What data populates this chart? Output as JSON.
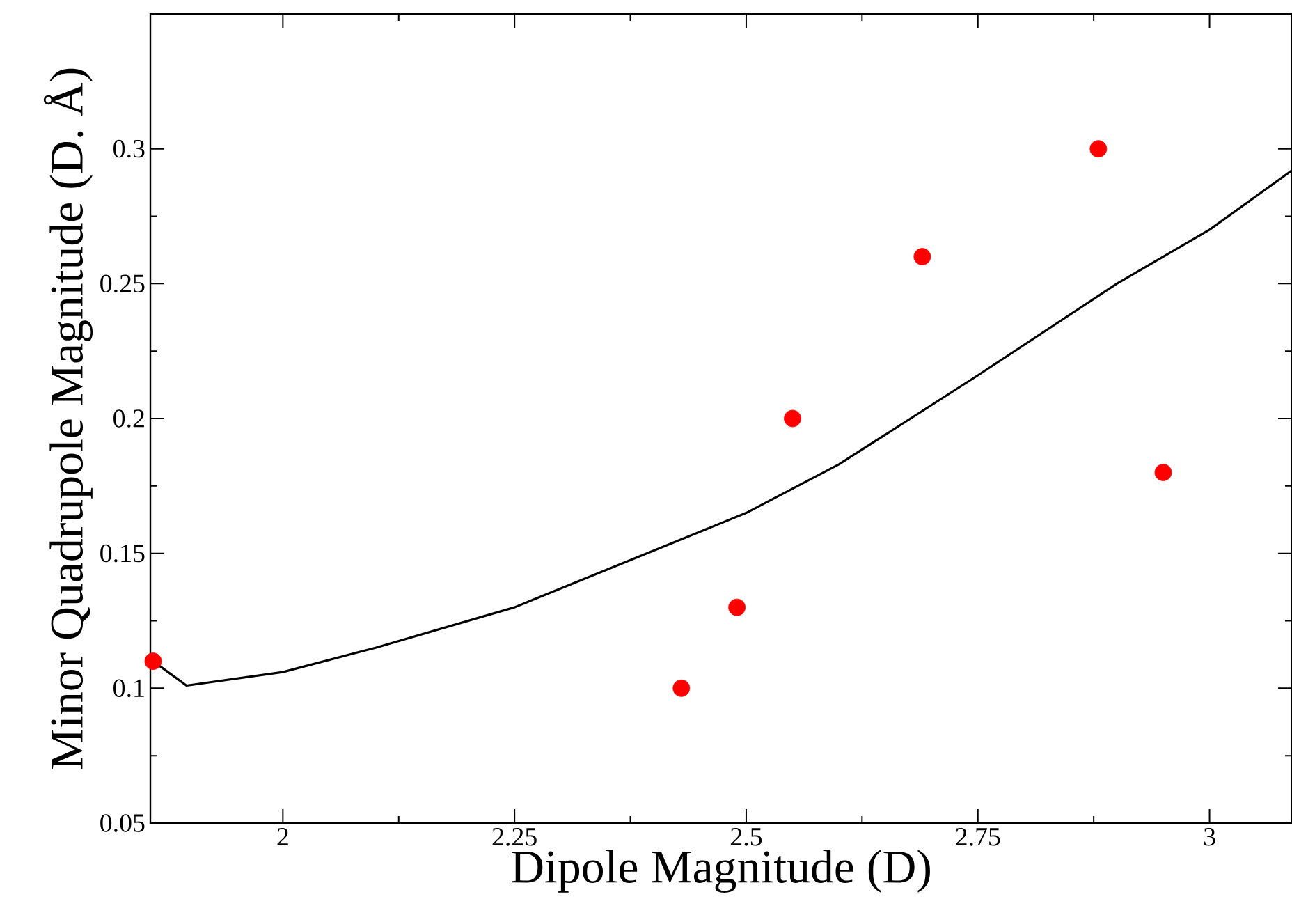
{
  "chart_data": {
    "type": "scatter",
    "xlabel": "Dipole Magnitude (D)",
    "ylabel": "Minor Quadrupole Magnitude (D. Å)",
    "xlim": [
      1.857,
      3.089
    ],
    "ylim": [
      0.05,
      0.35
    ],
    "xticks": [
      2,
      2.25,
      2.5,
      2.75,
      3
    ],
    "yticks": [
      0.05,
      0.1,
      0.15,
      0.2,
      0.25,
      0.3
    ],
    "series": [
      {
        "type": "line",
        "color": "#000000",
        "marker": "none",
        "line_style": "solid",
        "x": [
          1.86,
          1.896,
          2.0,
          2.1,
          2.25,
          2.4,
          2.5,
          2.6,
          2.75,
          2.9,
          3.0,
          3.089
        ],
        "values": [
          0.11,
          0.101,
          0.106,
          0.115,
          0.13,
          0.151,
          0.165,
          0.183,
          0.216,
          0.25,
          0.27,
          0.292
        ]
      },
      {
        "color": "#ff0000",
        "marker": "circle",
        "x": [
          1.86,
          2.43,
          2.49,
          2.55,
          2.69,
          2.88,
          2.95
        ],
        "values": [
          0.11,
          0.1,
          0.13,
          0.2,
          0.26,
          0.3,
          0.18
        ]
      }
    ]
  }
}
